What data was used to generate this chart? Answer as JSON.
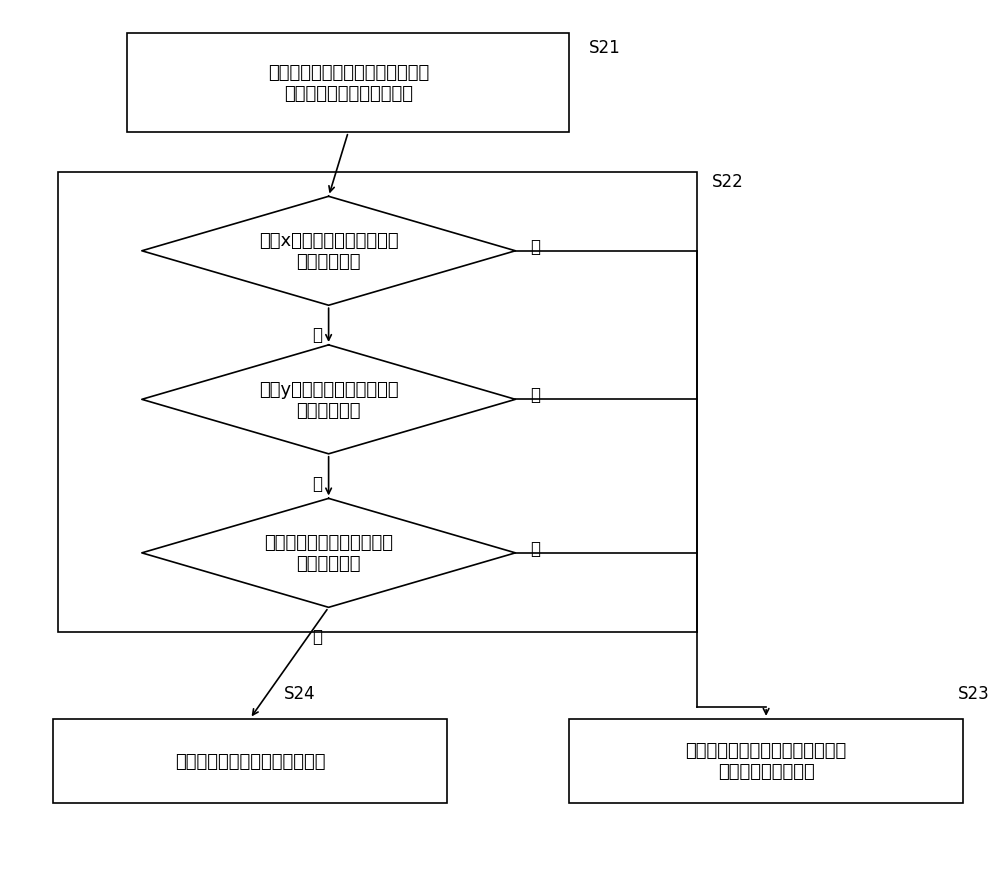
{
  "bg_color": "#ffffff",
  "line_color": "#000000",
  "text_color": "#000000",
  "font_size": 13,
  "label_font_size": 12,
  "step_font_size": 13,
  "s21_label": "S21",
  "s22_label": "S22",
  "s23_label": "S23",
  "s24_label": "S24",
  "box1_text": "根据测量偏移量的方法获得第二部\n件相对于第一部件的偏移量",
  "diamond1_text": "判断x向偏移量是否小于或等\n于第一预设值",
  "diamond2_text": "判断y向偏移量是否小于或等\n于第二预设值",
  "diamond3_text": "判断旋转角度是否小于或等\n于第三预设值",
  "box_s24_text": "确定第一部件和第二部件已对准",
  "box_s23_text": "控制第二部件移至与第一部件相距\n上述偏移量的位置处",
  "yes_label": "是",
  "no_label": "否"
}
